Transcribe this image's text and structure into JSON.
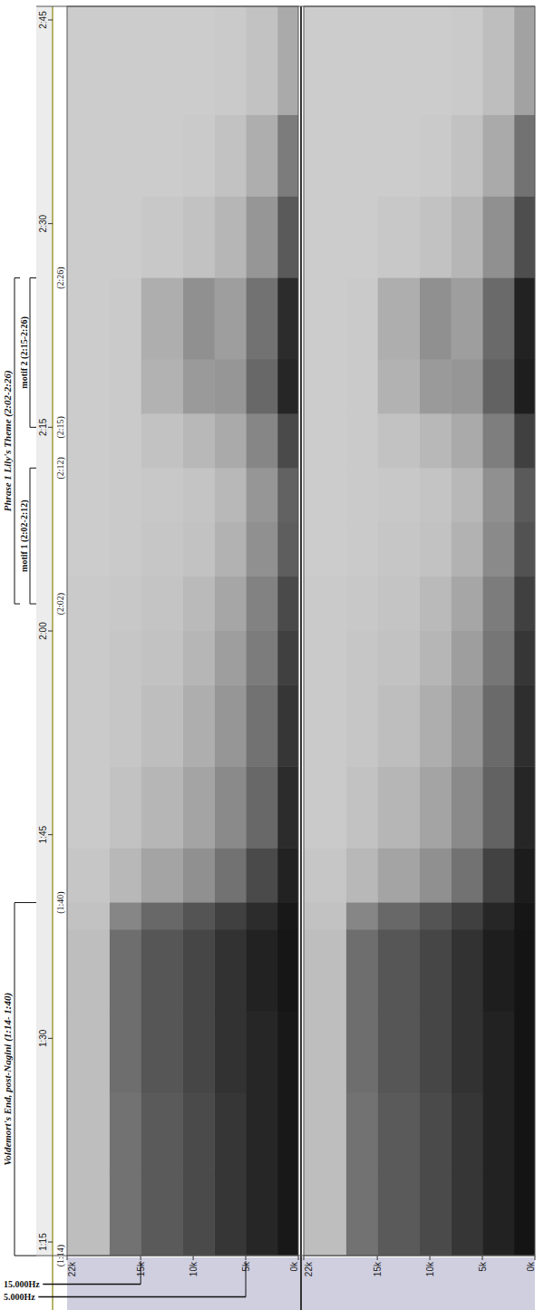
{
  "chart_data": {
    "type": "spectrogram",
    "brackets": [
      {
        "text": "Voldemort's End, post-Nagini (1:14- 1:40)",
        "start": 74,
        "end": 100
      },
      {
        "text": "Phrase 1 Lily's Theme (2:02-2:26)",
        "start": 122,
        "end": 146,
        "children": [
          {
            "text": "motif 1 (2:02-2:12)",
            "start": 122,
            "end": 132
          },
          {
            "text": "motif 2 (2:15-2:26)",
            "start": 135,
            "end": 146
          }
        ]
      }
    ],
    "time_markers": [
      {
        "value": 74,
        "label": "(1:14)"
      },
      {
        "value": 100,
        "label": "(1:40)"
      },
      {
        "value": 122,
        "label": "(2:02)"
      },
      {
        "value": 132,
        "label": "(2:12)"
      },
      {
        "value": 135,
        "label": "(2:15)"
      },
      {
        "value": 146,
        "label": "(2:26)"
      }
    ],
    "xlim": [
      74,
      166
    ],
    "xticks": [
      {
        "value": 75,
        "label": "1:15"
      },
      {
        "value": 90,
        "label": "1:30"
      },
      {
        "value": 105,
        "label": "1:45"
      },
      {
        "value": 120,
        "label": "2:00"
      },
      {
        "value": 135,
        "label": "2:15"
      },
      {
        "value": 150,
        "label": "2:30"
      },
      {
        "value": 165,
        "label": "2:45"
      }
    ],
    "ylim": [
      0,
      22000
    ],
    "yticks": [
      {
        "value": 0,
        "label": "0k"
      },
      {
        "value": 5000,
        "label": "5k"
      },
      {
        "value": 10000,
        "label": "10k"
      },
      {
        "value": 15000,
        "label": "15k"
      },
      {
        "value": 22000,
        "label": "22k"
      }
    ],
    "freq_markers": [
      {
        "value": 15000,
        "label": "15.000Hz"
      },
      {
        "value": 5000,
        "label": "5.000Hz"
      }
    ],
    "time_bins": [
      74,
      80,
      86,
      92,
      98,
      100,
      104,
      110,
      116,
      120,
      124,
      128,
      132,
      136,
      140,
      146,
      152,
      158,
      166
    ],
    "freq_bins": [
      0,
      2000,
      5000,
      8000,
      11000,
      15000,
      18000,
      22000
    ],
    "panels": [
      {
        "cells": [
          [
            95,
            88,
            80,
            70,
            62,
            50,
            12
          ],
          [
            95,
            88,
            80,
            70,
            62,
            50,
            12
          ],
          [
            95,
            88,
            82,
            72,
            64,
            52,
            12
          ],
          [
            96,
            90,
            82,
            72,
            64,
            52,
            12
          ],
          [
            95,
            85,
            75,
            65,
            55,
            40,
            10
          ],
          [
            90,
            70,
            50,
            35,
            25,
            15,
            8
          ],
          [
            85,
            55,
            38,
            25,
            16,
            10,
            6
          ],
          [
            80,
            50,
            32,
            20,
            12,
            8,
            6
          ],
          [
            75,
            45,
            28,
            16,
            10,
            8,
            6
          ],
          [
            70,
            42,
            24,
            14,
            9,
            7,
            6
          ],
          [
            60,
            35,
            18,
            10,
            8,
            6,
            5
          ],
          [
            58,
            32,
            15,
            9,
            7,
            6,
            5
          ],
          [
            70,
            40,
            22,
            15,
            10,
            6,
            5
          ],
          [
            88,
            55,
            32,
            30,
            18,
            6,
            5
          ],
          [
            85,
            50,
            28,
            35,
            20,
            6,
            5
          ],
          [
            62,
            32,
            16,
            10,
            7,
            5,
            5
          ],
          [
            45,
            20,
            10,
            6,
            5,
            5,
            5
          ],
          [
            22,
            10,
            6,
            5,
            5,
            5,
            5
          ]
        ]
      },
      {
        "cells": [
          [
            97,
            90,
            80,
            70,
            62,
            50,
            12
          ],
          [
            97,
            90,
            80,
            70,
            62,
            50,
            12
          ],
          [
            97,
            90,
            82,
            72,
            64,
            52,
            12
          ],
          [
            97,
            92,
            82,
            72,
            64,
            52,
            12
          ],
          [
            96,
            88,
            75,
            65,
            55,
            40,
            10
          ],
          [
            93,
            74,
            50,
            35,
            25,
            15,
            8
          ],
          [
            88,
            58,
            38,
            25,
            16,
            10,
            6
          ],
          [
            84,
            54,
            32,
            20,
            12,
            8,
            6
          ],
          [
            80,
            48,
            28,
            16,
            10,
            8,
            6
          ],
          [
            75,
            45,
            24,
            14,
            9,
            7,
            6
          ],
          [
            66,
            38,
            18,
            10,
            8,
            6,
            5
          ],
          [
            62,
            35,
            15,
            9,
            7,
            6,
            5
          ],
          [
            75,
            44,
            22,
            15,
            10,
            6,
            5
          ],
          [
            92,
            58,
            32,
            30,
            18,
            6,
            5
          ],
          [
            90,
            54,
            28,
            35,
            20,
            6,
            5
          ],
          [
            68,
            35,
            16,
            10,
            7,
            5,
            5
          ],
          [
            50,
            22,
            10,
            6,
            5,
            5,
            5
          ],
          [
            26,
            12,
            6,
            5,
            5,
            5,
            5
          ]
        ]
      }
    ]
  }
}
